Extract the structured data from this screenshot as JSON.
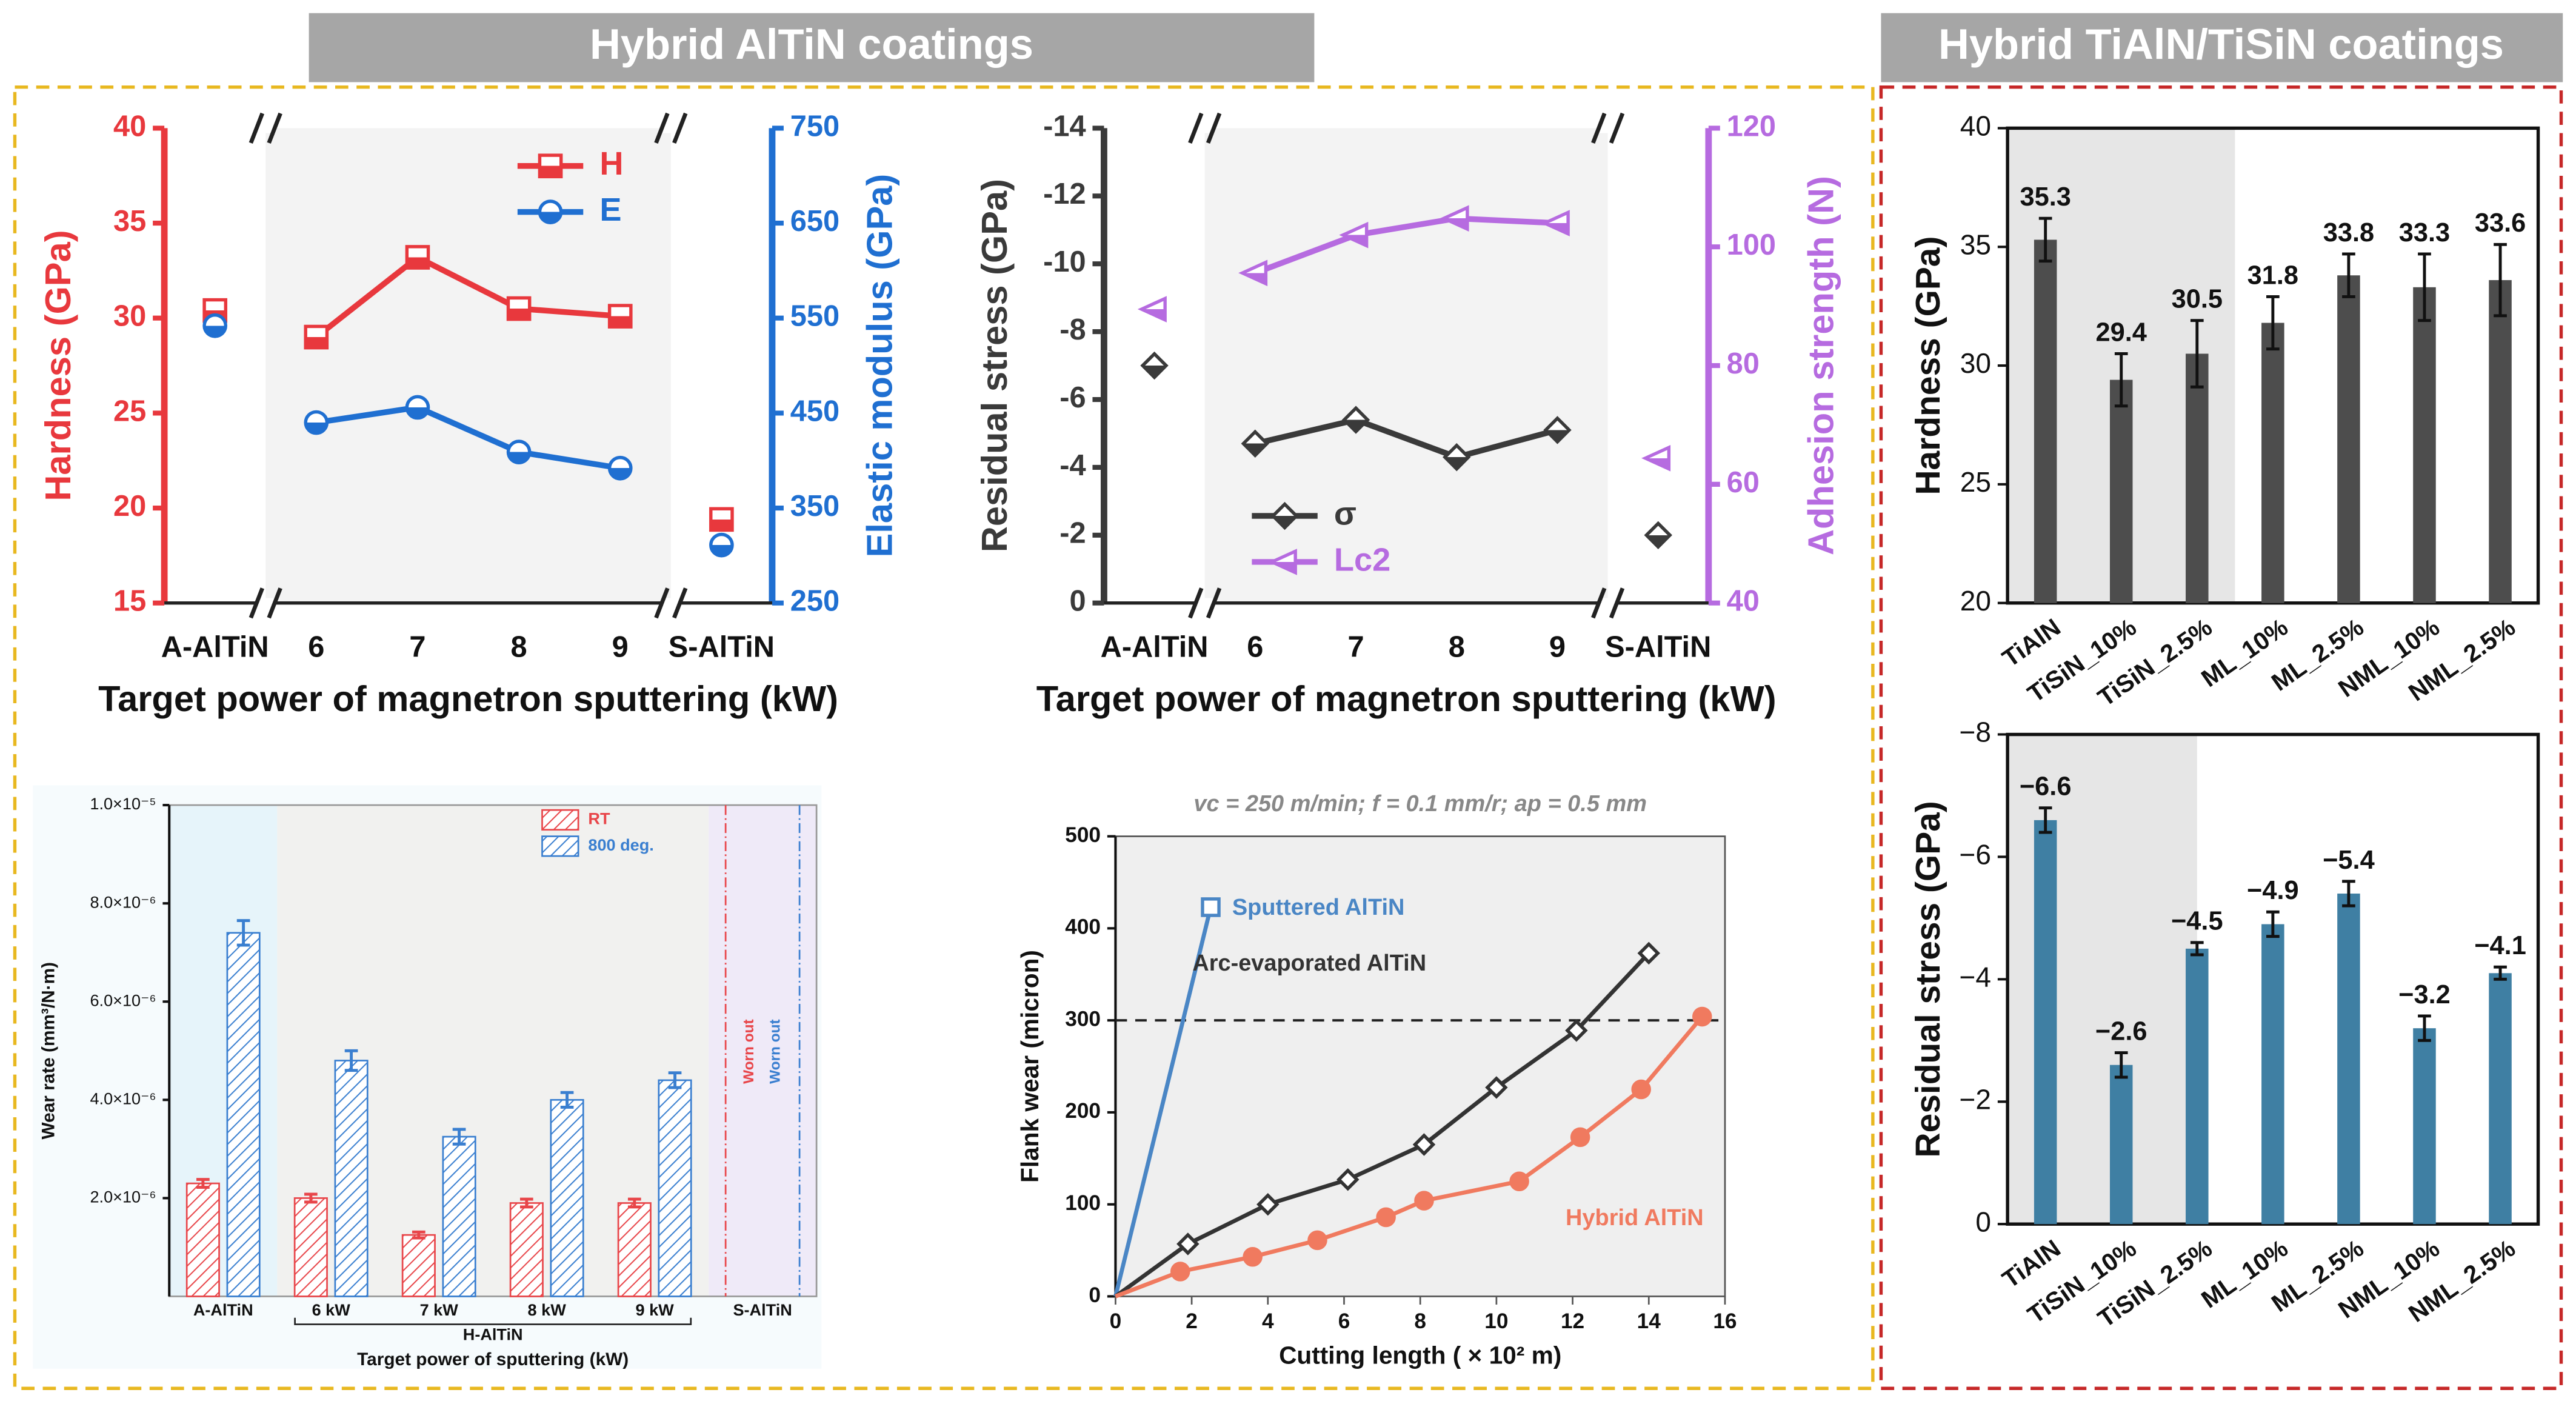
{
  "headers": [
    "Hybrid AlTiN coatings",
    "Hybrid TiAlN/TiSiN coatings"
  ],
  "chart_data": [
    {
      "type": "line",
      "categories": [
        "A-AlTiN",
        "6",
        "7",
        "8",
        "9",
        "S-AlTiN"
      ],
      "xlabel": "Target power of magnetron sputtering (kW)",
      "ylabel": "Hardness (GPa)",
      "y2label": "Elastic modulus (GPa)",
      "ylim": [
        15,
        40
      ],
      "yticks": [
        15,
        20,
        25,
        30,
        35,
        40
      ],
      "y2lim": [
        250,
        750
      ],
      "y2ticks": [
        250,
        350,
        450,
        550,
        650,
        750
      ],
      "series": [
        {
          "name": "H",
          "color": "#e8383d",
          "marker": "square",
          "values": [
            30.4,
            29.0,
            33.2,
            30.5,
            30.1,
            19.4
          ]
        },
        {
          "name": "E",
          "color": "#1f6fd1",
          "marker": "circle",
          "axis": "y2",
          "values": [
            542,
            440,
            456,
            409,
            392,
            311
          ]
        }
      ]
    },
    {
      "type": "line",
      "categories": [
        "A-AlTiN",
        "6",
        "7",
        "8",
        "9",
        "S-AlTiN"
      ],
      "xlabel": "Target power of magnetron sputtering (kW)",
      "ylabel": "Residual stress (GPa)",
      "y2label": "Adhesion strength (N)",
      "ylim": [
        0,
        -14
      ],
      "yticks": [
        0,
        -2,
        -4,
        -6,
        -8,
        -10,
        -12,
        -14
      ],
      "y2lim": [
        40,
        120
      ],
      "y2ticks": [
        40,
        60,
        80,
        100,
        120
      ],
      "series": [
        {
          "name": "σ",
          "color": "#3a3a3a",
          "marker": "diamond",
          "values": [
            -7.0,
            -4.7,
            -5.4,
            -4.3,
            -5.1,
            -2.0
          ]
        },
        {
          "name": "Lc2",
          "color": "#b66be0",
          "marker": "triangle",
          "axis": "y2",
          "values": [
            89.5,
            95.6,
            102,
            104.8,
            104,
            64.4
          ]
        }
      ]
    },
    {
      "type": "bar",
      "categories": [
        "A-AlTiN",
        "6 kW",
        "7 kW",
        "8 kW",
        "9 kW",
        "S-AlTiN"
      ],
      "xlabel": "Target power of sputtering (kW)",
      "group_label": "H-AlTiN",
      "ylabel": "Wear rate (mm³/N·m)",
      "annotations": [
        "Worn out",
        "Worn out"
      ],
      "ylim": [
        0,
        1e-05
      ],
      "yticks": [
        {
          "value": 2e-06,
          "label": "2.0×10⁻⁶"
        },
        {
          "value": 4e-06,
          "label": "4.0×10⁻⁶"
        },
        {
          "value": 6e-06,
          "label": "6.0×10⁻⁶"
        },
        {
          "value": 8e-06,
          "label": "8.0×10⁻⁶"
        },
        {
          "value": 1e-05,
          "label": "1.0×10⁻⁵"
        }
      ],
      "series": [
        {
          "name": "RT",
          "color": "#e8464a",
          "hatch": true,
          "values": [
            2.3e-06,
            2e-06,
            1.25e-06,
            1.9e-06,
            1.9e-06,
            null
          ],
          "errors": [
            8e-08,
            8e-08,
            6e-08,
            8e-08,
            8e-08,
            null
          ]
        },
        {
          "name": "800 deg.",
          "color": "#3a7fd0",
          "hatch": true,
          "values": [
            7.4e-06,
            4.8e-06,
            3.25e-06,
            4e-06,
            4.4e-06,
            null
          ],
          "errors": [
            2.5e-07,
            2e-07,
            1.5e-07,
            1.5e-07,
            1.5e-07,
            null
          ]
        }
      ]
    },
    {
      "type": "line",
      "subtitle": "vc = 250 m/min;  f = 0.1 mm/r;  ap = 0.5 mm",
      "xlabel": "Cutting length ( × 10² m)",
      "ylabel": "Flank wear (micron)",
      "xlim": [
        0,
        16
      ],
      "xticks": [
        0,
        2,
        4,
        6,
        8,
        10,
        12,
        14,
        16
      ],
      "ylim": [
        0,
        500
      ],
      "yticks": [
        0,
        100,
        200,
        300,
        400,
        500
      ],
      "hline": 300,
      "series": [
        {
          "name": "Sputtered AlTiN",
          "color": "#4a86c5",
          "marker": "square",
          "x": [
            0,
            2.5
          ],
          "values": [
            0,
            423
          ]
        },
        {
          "name": "Arc-evaporated AlTiN",
          "color": "#333333",
          "marker": "diamond",
          "x": [
            0,
            1.9,
            4.0,
            6.1,
            8.1,
            10.0,
            12.1,
            14.0
          ],
          "values": [
            0,
            57,
            100,
            127,
            165,
            227,
            289,
            373
          ]
        },
        {
          "name": "Hybrid AlTiN",
          "color": "#f07a5f",
          "marker": "circle",
          "x": [
            0,
            1.7,
            3.6,
            5.3,
            7.1,
            8.1,
            10.6,
            12.2,
            13.8,
            15.4
          ],
          "values": [
            0,
            27,
            43,
            61,
            86,
            104,
            125,
            173,
            225,
            304
          ]
        }
      ]
    },
    {
      "type": "bar",
      "categories": [
        "TiAlN",
        "TiSiN_10%",
        "TiSiN_2.5%",
        "ML_10%",
        "ML_2.5%",
        "NML_10%",
        "NML_2.5%"
      ],
      "ylabel": "Hardness (GPa)",
      "ylim": [
        20,
        40
      ],
      "yticks": [
        20,
        25,
        30,
        35,
        40
      ],
      "color": "#4d4d4d",
      "values": [
        35.3,
        29.4,
        30.5,
        31.8,
        33.8,
        33.3,
        33.6
      ],
      "errors": [
        0.9,
        1.1,
        1.4,
        1.1,
        0.9,
        1.4,
        1.5
      ]
    },
    {
      "type": "bar",
      "categories": [
        "TiAlN",
        "TiSiN_10%",
        "TiSiN_2.5%",
        "ML_10%",
        "ML_2.5%",
        "NML_10%",
        "NML_2.5%"
      ],
      "ylabel": "Residual stress (GPa)",
      "ylim": [
        0,
        -8
      ],
      "yticks": [
        0,
        {
          "value": -2,
          "label": "−2"
        },
        {
          "value": -4,
          "label": "−4"
        },
        {
          "value": -6,
          "label": "−6"
        },
        {
          "value": -8,
          "label": "−8"
        }
      ],
      "color": "#3f7fa3",
      "values": [
        -6.6,
        -2.6,
        -4.5,
        -4.9,
        -5.4,
        -3.2,
        -4.1
      ],
      "value_labels": [
        "−6.6",
        "−2.6",
        "−4.5",
        "−4.9",
        "−5.4",
        "−3.2",
        "−4.1"
      ],
      "errors": [
        0.2,
        0.2,
        0.1,
        0.2,
        0.2,
        0.2,
        0.1
      ]
    }
  ]
}
